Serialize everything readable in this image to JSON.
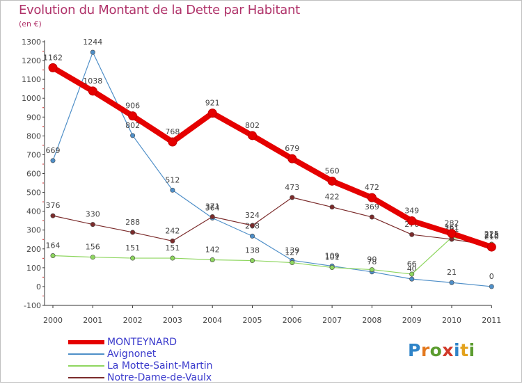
{
  "title": "Evolution du Montant de la Dette par Habitant",
  "subtitle": "(en €)",
  "logo": {
    "letters": [
      "P",
      "r",
      "o",
      "x",
      "i",
      "t",
      "i"
    ],
    "colors": [
      "#2f84c8",
      "#e3781d",
      "#5b9c2f",
      "#d13a2a",
      "#2f84c8",
      "#e3a21d",
      "#5b9c2f"
    ]
  },
  "chart_data": {
    "type": "line",
    "x": [
      "2000",
      "2001",
      "2002",
      "2003",
      "2004",
      "2005",
      "2006",
      "2007",
      "2008",
      "2009",
      "2010",
      "2011"
    ],
    "ylim": [
      -100,
      1300
    ],
    "yticks": [
      "-100",
      "0",
      "100",
      "200",
      "300",
      "400",
      "500",
      "600",
      "700",
      "800",
      "900",
      "1000",
      "1100",
      "1200",
      "1300"
    ],
    "grid": false,
    "legend_position": "bottom-left",
    "series": [
      {
        "name": "Avignonet",
        "color": "#4f8fc8",
        "width": "thin",
        "values": [
          669,
          1244,
          802,
          512,
          364,
          268,
          139,
          109,
          78,
          40,
          21,
          0
        ],
        "labels": [
          "669",
          "1244",
          "802",
          "512",
          "364",
          "268",
          "139",
          "109",
          "78",
          "40",
          "21",
          "0"
        ]
      },
      {
        "name": "La Motte-Saint-Martin",
        "color": "#8ed65f",
        "width": "thin",
        "values": [
          164,
          156,
          151,
          151,
          142,
          138,
          127,
          101,
          90,
          66,
          261,
          225
        ],
        "labels": [
          "164",
          "156",
          "151",
          "151",
          "142",
          "138",
          "127",
          "101",
          "90",
          "66",
          "261",
          "225"
        ]
      },
      {
        "name": "Notre-Dame-de-Vaulx",
        "color": "#7b2b2b",
        "width": "thin",
        "values": [
          376,
          330,
          288,
          242,
          371,
          324,
          473,
          422,
          369,
          276,
          251,
          218
        ],
        "labels": [
          "376",
          "330",
          "288",
          "242",
          "371",
          "324",
          "473",
          "422",
          "369",
          "276",
          "251",
          "218"
        ]
      },
      {
        "name": "MONTEYNARD",
        "color": "#e50000",
        "width": "thick",
        "values": [
          1162,
          1038,
          906,
          768,
          921,
          802,
          679,
          560,
          472,
          349,
          282,
          210
        ],
        "labels": [
          "1162",
          "1038",
          "906",
          "768",
          "921",
          "802",
          "679",
          "560",
          "472",
          "349",
          "282",
          "210"
        ]
      }
    ],
    "legend": [
      "MONTEYNARD",
      "Avignonet",
      "La Motte-Saint-Martin",
      "Notre-Dame-de-Vaulx"
    ]
  }
}
